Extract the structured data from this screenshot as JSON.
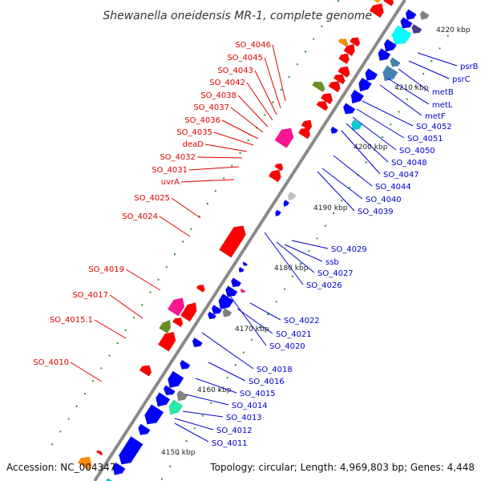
{
  "title": "Shewanella oneidensis MR-1, complete genome",
  "footer": {
    "accession": "Accession: NC_004347",
    "summary": "Topology: circular; Length: 4,969,803 bp; Genes: 4,448"
  },
  "colors": {
    "backbone": "#8c8c8c",
    "forward_label": "#e00000",
    "reverse_label": "#0000cc",
    "forward_gene": "#ff0000",
    "reverse_gene": "#0000ff",
    "tick": "#1a8a1a"
  },
  "coordinates": {
    "unit": "kbp",
    "ticks": [
      "4150 kbp",
      "4160 kbp",
      "4170 kbp",
      "4180 kbp",
      "4190 kbp",
      "4200 kbp",
      "4210 kbp",
      "4220 kbp"
    ]
  },
  "forward_genes": [
    "SO_4046",
    "SO_4045",
    "SO_4043",
    "SO_4042",
    "SO_4038",
    "SO_4037",
    "SO_4036",
    "SO_4035",
    "deaD",
    "SO_4032",
    "SO_4031",
    "uvrA",
    "SO_4025",
    "SO_4024",
    "SO_4019",
    "SO_4017",
    "SO_4015.1",
    "SO_4010"
  ],
  "reverse_genes": [
    "psrB",
    "psrC",
    "metB",
    "metL",
    "metF",
    "SO_4052",
    "SO_4051",
    "SO_4050",
    "SO_4048",
    "SO_4047",
    "SO_4044",
    "SO_4040",
    "SO_4039",
    "SO_4029",
    "ssb",
    "SO_4027",
    "SO_4026",
    "SO_4022",
    "SO_4021",
    "SO_4020",
    "SO_4018",
    "SO_4016",
    "SO_4015",
    "SO_4014",
    "SO_4013",
    "SO_4012",
    "SO_4011"
  ]
}
